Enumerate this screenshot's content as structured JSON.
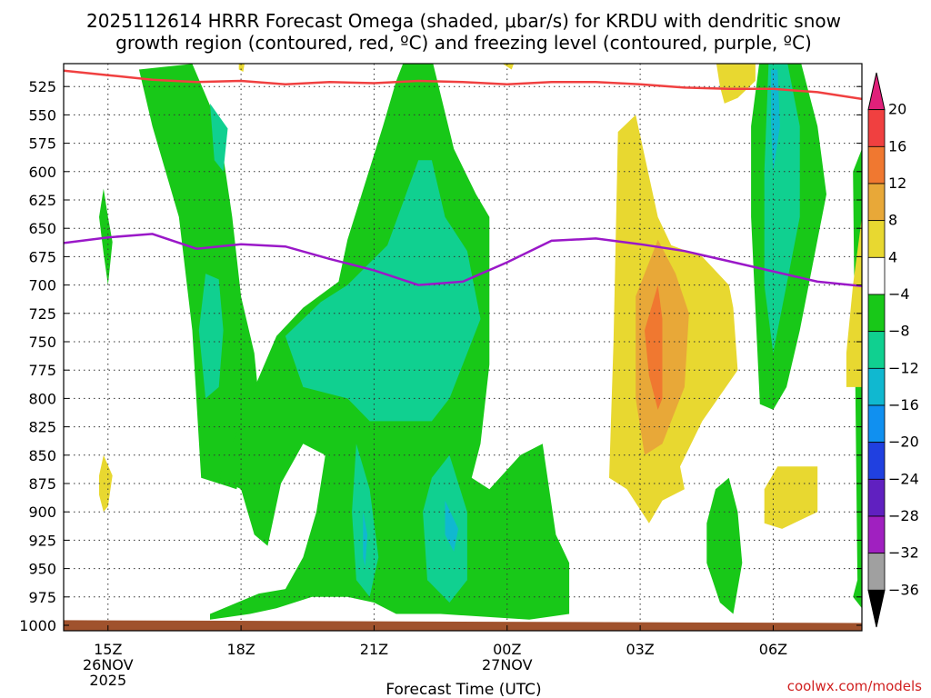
{
  "chart_data": {
    "type": "heatmap",
    "title_line1": "2025112614 HRRR Forecast Omega (shaded, μbar/s) for KRDU with dendritic snow",
    "title_line2": "growth region (contoured, red, ºC) and freezing level (contoured, purple, ºC)",
    "xlabel": "Forecast Time (UTC)",
    "credit": "coolwx.com/models",
    "y_ticks": [
      525,
      550,
      575,
      600,
      625,
      650,
      675,
      700,
      725,
      750,
      775,
      800,
      825,
      850,
      875,
      900,
      925,
      950,
      975,
      1000
    ],
    "ylim": [
      500,
      1000
    ],
    "x_ticks": [
      {
        "h": 0,
        "lines": [
          "15Z",
          "26NOV",
          "2025"
        ]
      },
      {
        "h": 3,
        "lines": [
          "18Z"
        ]
      },
      {
        "h": 6,
        "lines": [
          "21Z"
        ]
      },
      {
        "h": 9,
        "lines": [
          "00Z",
          "27NOV"
        ]
      },
      {
        "h": 12,
        "lines": [
          "03Z"
        ]
      },
      {
        "h": 15,
        "lines": [
          "06Z"
        ]
      }
    ],
    "xlim": [
      -1,
      17
    ],
    "colorbar": {
      "labels": [
        "20",
        "16",
        "12",
        "8",
        "4",
        "−4",
        "−8",
        "−12",
        "−16",
        "−20",
        "−24",
        "−28",
        "−32",
        "−36"
      ],
      "colors": [
        "#e0207a",
        "#f04040",
        "#f07830",
        "#e8a838",
        "#e8d830",
        "#ffffff",
        "#18c818",
        "#10d090",
        "#10b8d0",
        "#1090f0",
        "#2040e0",
        "#6020c0",
        "#a020c0",
        "#a0a0a0",
        "#000000"
      ]
    },
    "colors": {
      "green": "#18c818",
      "teal": "#10d090",
      "cyan": "#10b8d0",
      "blue": "#1090f0",
      "yellow": "#e8d830",
      "orange": "#e8a838",
      "darkorange": "#f07830",
      "red_line": "#f04040",
      "purple_line": "#9a18c8",
      "ground": "#a0522d"
    },
    "series": [
      {
        "name": "dendritic",
        "points": [
          [
            -1,
            511
          ],
          [
            0,
            515
          ],
          [
            1,
            519
          ],
          [
            2,
            521
          ],
          [
            3,
            520
          ],
          [
            4,
            523
          ],
          [
            5,
            521
          ],
          [
            6,
            522
          ],
          [
            7,
            520
          ],
          [
            8,
            521
          ],
          [
            9,
            523
          ],
          [
            10,
            521
          ],
          [
            11,
            521
          ],
          [
            12,
            523
          ],
          [
            13,
            526
          ],
          [
            14,
            527
          ],
          [
            15,
            527
          ],
          [
            16,
            530
          ],
          [
            17,
            536
          ]
        ]
      },
      {
        "name": "freezing",
        "points": [
          [
            -1,
            663
          ],
          [
            0,
            658
          ],
          [
            1,
            655
          ],
          [
            2,
            668
          ],
          [
            3,
            664
          ],
          [
            4,
            666
          ],
          [
            5,
            677
          ],
          [
            6,
            687
          ],
          [
            7,
            700
          ],
          [
            8,
            697
          ],
          [
            9,
            680
          ],
          [
            10,
            661
          ],
          [
            11,
            659
          ],
          [
            12,
            664
          ],
          [
            13,
            670
          ],
          [
            14,
            679
          ],
          [
            15,
            688
          ],
          [
            16,
            697
          ],
          [
            17,
            701
          ]
        ]
      }
    ],
    "regions": [
      {
        "c": "green",
        "p": [
          [
            -0.1,
            615
          ],
          [
            0,
            640
          ],
          [
            0.1,
            662
          ],
          [
            0,
            700
          ],
          [
            -0.1,
            672
          ],
          [
            -0.2,
            640
          ]
        ]
      },
      {
        "c": "yellow",
        "p": [
          [
            -0.2,
            868
          ],
          [
            -0.1,
            850
          ],
          [
            0.1,
            868
          ],
          [
            0,
            895
          ],
          [
            -0.1,
            900
          ],
          [
            -0.2,
            885
          ]
        ]
      },
      {
        "c": "yellow",
        "p": [
          [
            2.95,
            500
          ],
          [
            3.1,
            500
          ],
          [
            3.05,
            512
          ],
          [
            2.95,
            510
          ]
        ]
      },
      {
        "c": "green",
        "p": [
          [
            0.7,
            510
          ],
          [
            1.9,
            505
          ],
          [
            2.5,
            560
          ],
          [
            2.8,
            640
          ],
          [
            3,
            710
          ],
          [
            3.3,
            760
          ],
          [
            3.4,
            800
          ],
          [
            2.9,
            880
          ],
          [
            2.1,
            870
          ],
          [
            1.9,
            740
          ],
          [
            1.6,
            640
          ],
          [
            1.0,
            560
          ]
        ]
      },
      {
        "c": "teal",
        "p": [
          [
            2.3,
            540
          ],
          [
            2.7,
            562
          ],
          [
            2.6,
            600
          ],
          [
            2.4,
            590
          ]
        ]
      },
      {
        "c": "teal",
        "p": [
          [
            2.2,
            690
          ],
          [
            2.5,
            695
          ],
          [
            2.6,
            740
          ],
          [
            2.5,
            790
          ],
          [
            2.2,
            800
          ],
          [
            2.05,
            740
          ]
        ]
      },
      {
        "c": "green",
        "p": [
          [
            2.5,
            870
          ],
          [
            3.2,
            800
          ],
          [
            3.8,
            745
          ],
          [
            4.4,
            720
          ],
          [
            5.2,
            697
          ],
          [
            5.4,
            660
          ],
          [
            5.8,
            610
          ],
          [
            6.2,
            560
          ],
          [
            6.5,
            520
          ],
          [
            6.7,
            500
          ],
          [
            7.3,
            500
          ],
          [
            7.8,
            580
          ],
          [
            8.3,
            620
          ],
          [
            8.6,
            640
          ],
          [
            8.6,
            770
          ],
          [
            8.4,
            840
          ],
          [
            8.2,
            870
          ],
          [
            8.6,
            880
          ],
          [
            9.3,
            850
          ],
          [
            9.8,
            840
          ],
          [
            10.1,
            920
          ],
          [
            10.4,
            945
          ],
          [
            10.4,
            990
          ],
          [
            9.5,
            995
          ],
          [
            7.5,
            990
          ],
          [
            6.5,
            990
          ],
          [
            6.0,
            980
          ],
          [
            5.4,
            975
          ],
          [
            4.6,
            975
          ],
          [
            3.8,
            985
          ],
          [
            3.2,
            990
          ],
          [
            2.3,
            995
          ],
          [
            2.3,
            990
          ],
          [
            3.4,
            972
          ],
          [
            4,
            968
          ],
          [
            4.4,
            940
          ],
          [
            4.7,
            900
          ],
          [
            4.9,
            850
          ],
          [
            4.4,
            840
          ],
          [
            3.9,
            875
          ],
          [
            3.6,
            930
          ],
          [
            3.3,
            920
          ],
          [
            3.0,
            880
          ]
        ]
      },
      {
        "c": "teal",
        "p": [
          [
            4.0,
            745
          ],
          [
            4.8,
            715
          ],
          [
            5.4,
            700
          ],
          [
            6.3,
            665
          ],
          [
            7.0,
            590
          ],
          [
            7.3,
            590
          ],
          [
            7.6,
            640
          ],
          [
            8.1,
            670
          ],
          [
            8.4,
            730
          ],
          [
            8.1,
            760
          ],
          [
            7.7,
            800
          ],
          [
            7.3,
            820
          ],
          [
            5.9,
            820
          ],
          [
            5.4,
            800
          ],
          [
            4.4,
            790
          ]
        ]
      },
      {
        "c": "teal",
        "p": [
          [
            5.6,
            840
          ],
          [
            5.9,
            880
          ],
          [
            6.1,
            940
          ],
          [
            5.9,
            975
          ],
          [
            5.6,
            960
          ],
          [
            5.5,
            900
          ]
        ]
      },
      {
        "c": "teal",
        "p": [
          [
            7.3,
            870
          ],
          [
            7.7,
            850
          ],
          [
            8.1,
            900
          ],
          [
            8.1,
            960
          ],
          [
            7.7,
            980
          ],
          [
            7.2,
            960
          ],
          [
            7.1,
            900
          ]
        ]
      },
      {
        "c": "cyan",
        "p": [
          [
            5.75,
            900
          ],
          [
            5.85,
            920
          ],
          [
            5.8,
            948
          ],
          [
            5.75,
            940
          ]
        ]
      },
      {
        "c": "cyan",
        "p": [
          [
            7.6,
            890
          ],
          [
            7.9,
            915
          ],
          [
            7.8,
            935
          ],
          [
            7.6,
            920
          ]
        ]
      },
      {
        "c": "yellow",
        "p": [
          [
            8.8,
            500
          ],
          [
            9.2,
            500
          ],
          [
            9.1,
            510
          ],
          [
            8.9,
            505
          ]
        ]
      },
      {
        "c": "yellow",
        "p": [
          [
            11.5,
            565
          ],
          [
            11.9,
            550
          ],
          [
            12.4,
            640
          ],
          [
            12.7,
            665
          ],
          [
            13.4,
            675
          ],
          [
            14,
            700
          ],
          [
            14.1,
            720
          ],
          [
            14.2,
            775
          ],
          [
            13.4,
            820
          ],
          [
            12.9,
            860
          ],
          [
            13,
            880
          ],
          [
            12.5,
            890
          ],
          [
            12.2,
            910
          ],
          [
            11.7,
            880
          ],
          [
            11.3,
            870
          ],
          [
            11.4,
            750
          ]
        ]
      },
      {
        "c": "orange",
        "p": [
          [
            11.9,
            710
          ],
          [
            12.4,
            660
          ],
          [
            12.8,
            690
          ],
          [
            13.1,
            725
          ],
          [
            13.0,
            790
          ],
          [
            12.5,
            840
          ],
          [
            12.1,
            850
          ],
          [
            11.9,
            800
          ]
        ]
      },
      {
        "c": "darkorange",
        "p": [
          [
            12.1,
            740
          ],
          [
            12.4,
            700
          ],
          [
            12.5,
            730
          ],
          [
            12.5,
            800
          ],
          [
            12.4,
            810
          ],
          [
            12.2,
            780
          ]
        ]
      },
      {
        "c": "yellow",
        "p": [
          [
            13.7,
            500
          ],
          [
            14.6,
            500
          ],
          [
            14.6,
            520
          ],
          [
            14.2,
            535
          ],
          [
            13.9,
            540
          ],
          [
            13.8,
            525
          ]
        ]
      },
      {
        "c": "green",
        "p": [
          [
            14.7,
            500
          ],
          [
            15.6,
            500
          ],
          [
            16.0,
            560
          ],
          [
            16.2,
            620
          ],
          [
            16.0,
            660
          ],
          [
            15.8,
            700
          ],
          [
            15.6,
            740
          ],
          [
            15.3,
            790
          ],
          [
            15.0,
            810
          ],
          [
            14.7,
            805
          ],
          [
            14.5,
            640
          ],
          [
            14.5,
            560
          ]
        ]
      },
      {
        "c": "teal",
        "p": [
          [
            14.9,
            500
          ],
          [
            15.3,
            500
          ],
          [
            15.6,
            560
          ],
          [
            15.6,
            640
          ],
          [
            15.3,
            700
          ],
          [
            15.1,
            740
          ],
          [
            15.0,
            760
          ],
          [
            14.8,
            700
          ],
          [
            14.8,
            600
          ]
        ]
      },
      {
        "c": "cyan",
        "p": [
          [
            14.95,
            510
          ],
          [
            15.1,
            510
          ],
          [
            15.15,
            560
          ],
          [
            15.0,
            600
          ],
          [
            14.95,
            560
          ]
        ]
      },
      {
        "c": "yellow",
        "p": [
          [
            14.8,
            880
          ],
          [
            15.1,
            860
          ],
          [
            16.0,
            860
          ],
          [
            16.0,
            900
          ],
          [
            15.2,
            915
          ],
          [
            14.8,
            910
          ]
        ]
      },
      {
        "c": "green",
        "p": [
          [
            13.5,
            910
          ],
          [
            13.7,
            880
          ],
          [
            14.0,
            870
          ],
          [
            14.2,
            900
          ],
          [
            14.3,
            945
          ],
          [
            14.1,
            990
          ],
          [
            13.8,
            980
          ],
          [
            13.5,
            945
          ]
        ]
      },
      {
        "c": "green",
        "p": [
          [
            16.8,
            600
          ],
          [
            17,
            580
          ],
          [
            17,
            985
          ],
          [
            16.8,
            975
          ],
          [
            16.9,
            960
          ]
        ]
      },
      {
        "c": "yellow",
        "p": [
          [
            16.65,
            760
          ],
          [
            16.8,
            700
          ],
          [
            17,
            640
          ],
          [
            17,
            790
          ],
          [
            16.65,
            790
          ]
        ]
      }
    ]
  }
}
